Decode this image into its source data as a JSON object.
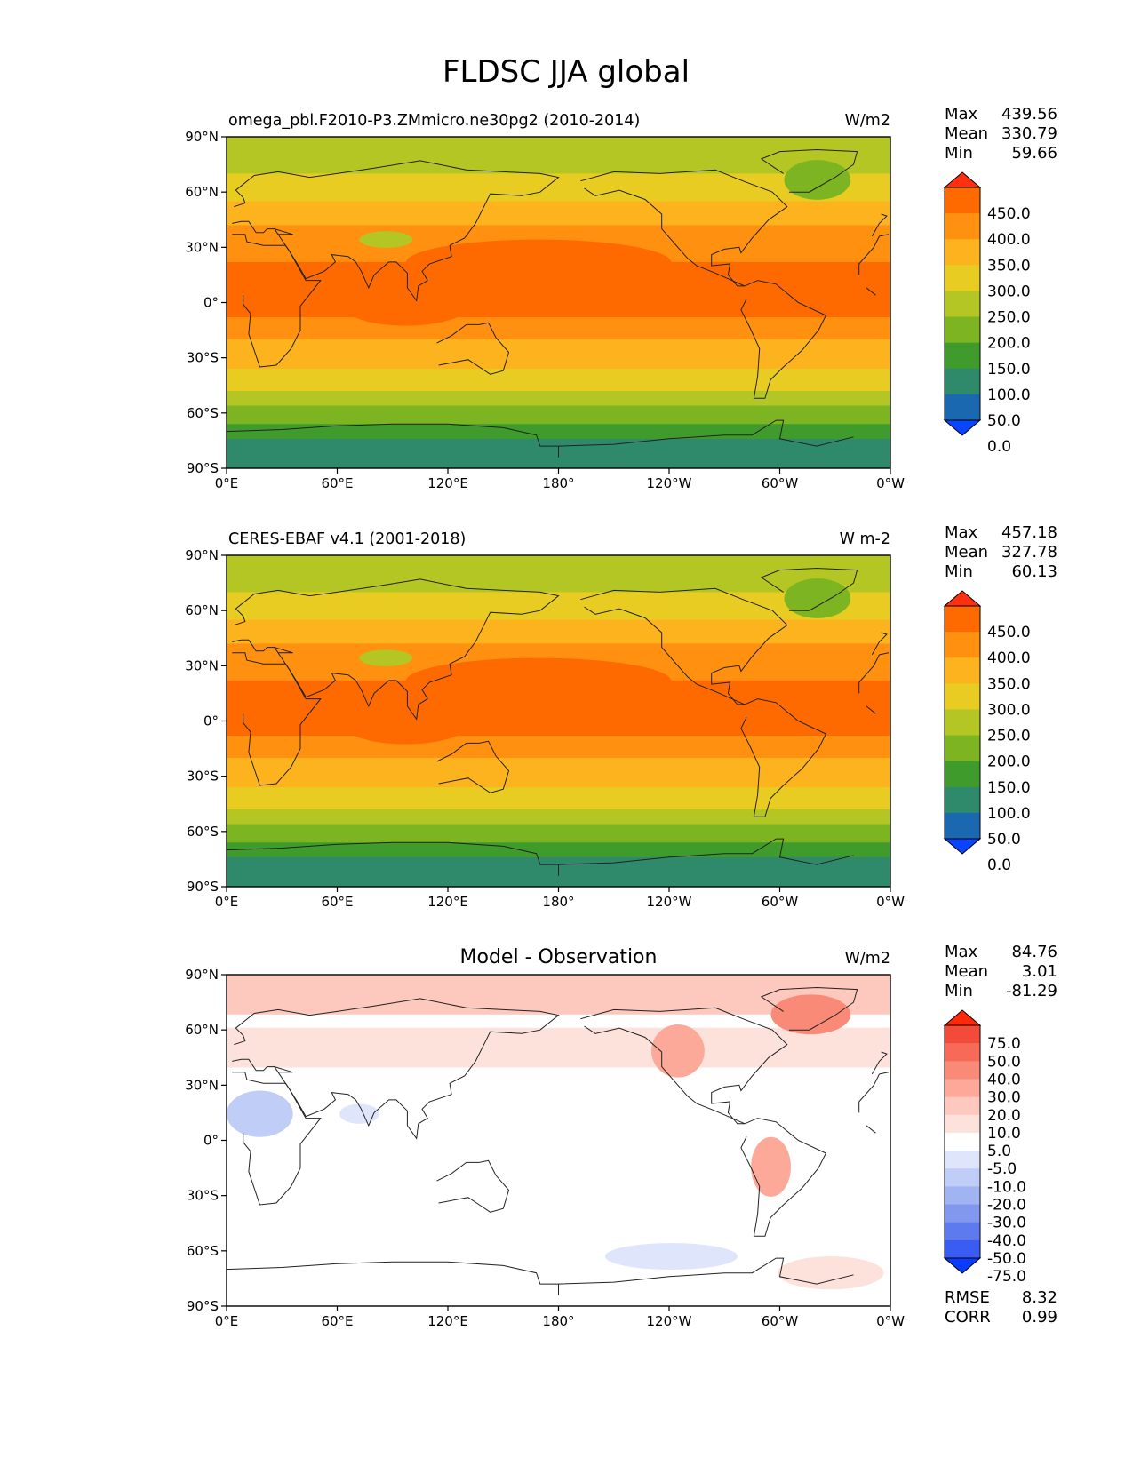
{
  "figure": {
    "title": "FLDSC JJA global"
  },
  "axes": {
    "lat_ticks": [
      "90°N",
      "60°N",
      "30°N",
      "0°",
      "30°S",
      "60°S",
      "90°S"
    ],
    "lon_ticks": [
      "0°E",
      "60°E",
      "120°E",
      "180°",
      "120°W",
      "60°W",
      "0°W"
    ]
  },
  "panels": [
    {
      "kind": "field",
      "title_left": "omega_pbl.F2010-P3.ZMmicro.ne30pg2 (2010-2014)",
      "title_center": "",
      "units": "W/m2",
      "stats": [
        {
          "label": "Max",
          "value": "439.56"
        },
        {
          "label": "Mean",
          "value": "330.79"
        },
        {
          "label": "Min",
          "value": "59.66"
        }
      ],
      "colorbar": {
        "labels": [
          "450.0",
          "400.0",
          "350.0",
          "300.0",
          "250.0",
          "200.0",
          "150.0",
          "100.0",
          "50.0",
          "0.0"
        ],
        "colors": [
          "#ff3010",
          "#ff6a00",
          "#ff9010",
          "#fdb31e",
          "#e8cc22",
          "#b4c623",
          "#7cb521",
          "#3f9c2c",
          "#2e8a6a",
          "#1a68b0",
          "#0a44ff"
        ]
      },
      "extra_stats": []
    },
    {
      "kind": "field",
      "title_left": "CERES-EBAF v4.1 (2001-2018)",
      "title_center": "",
      "units": "W m-2",
      "stats": [
        {
          "label": "Max",
          "value": "457.18"
        },
        {
          "label": "Mean",
          "value": "327.78"
        },
        {
          "label": "Min",
          "value": "60.13"
        }
      ],
      "colorbar": {
        "labels": [
          "450.0",
          "400.0",
          "350.0",
          "300.0",
          "250.0",
          "200.0",
          "150.0",
          "100.0",
          "50.0",
          "0.0"
        ],
        "colors": [
          "#ff3010",
          "#ff6a00",
          "#ff9010",
          "#fdb31e",
          "#e8cc22",
          "#b4c623",
          "#7cb521",
          "#3f9c2c",
          "#2e8a6a",
          "#1a68b0",
          "#0a44ff"
        ]
      },
      "extra_stats": []
    },
    {
      "kind": "diff",
      "title_left": "",
      "title_center": "Model - Observation",
      "units": "W/m2",
      "stats": [
        {
          "label": "Max",
          "value": "84.76"
        },
        {
          "label": "Mean",
          "value": "3.01"
        },
        {
          "label": "Min",
          "value": "-81.29"
        }
      ],
      "colorbar": {
        "labels": [
          "75.0",
          "50.0",
          "40.0",
          "30.0",
          "20.0",
          "10.0",
          "5.0",
          "-5.0",
          "-10.0",
          "-20.0",
          "-30.0",
          "-40.0",
          "-50.0",
          "-75.0"
        ],
        "colors": [
          "#ff2a0a",
          "#f34b3a",
          "#f76a57",
          "#fa8a78",
          "#fca99a",
          "#fdc8bd",
          "#fde2dc",
          "#ffffff",
          "#dfe5fb",
          "#c0cdf6",
          "#a1b4f2",
          "#8198ee",
          "#5d7bee",
          "#3b5cf2",
          "#0a3cff"
        ]
      },
      "extra_stats": [
        {
          "label": "RMSE",
          "value": "8.32"
        },
        {
          "label": "CORR",
          "value": "0.99"
        }
      ]
    }
  ]
}
